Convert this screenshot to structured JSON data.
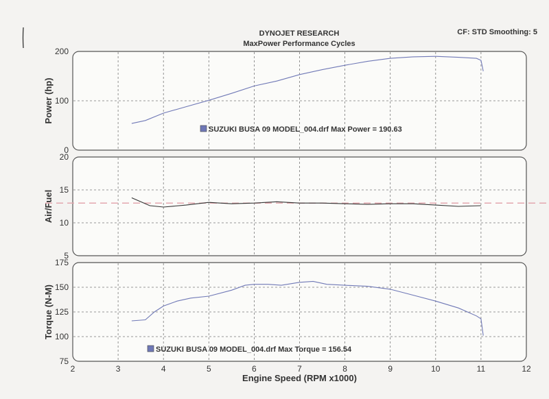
{
  "header": {
    "title": "DYNOJET RESEARCH",
    "subtitle": "MaxPower Performance Cycles",
    "settings": "CF: STD  Smoothing: 5"
  },
  "chart_data": [
    {
      "type": "line",
      "ylabel": "Power (hp)",
      "ylim": [
        0,
        200
      ],
      "yticks": [
        0,
        100,
        200
      ],
      "xlim": [
        2,
        12
      ],
      "grid": true,
      "legend": "SUZUKI BUSA 09 MODEL_004.drf Max Power = 190.63",
      "legend_color": "#6f78b6",
      "series": [
        {
          "x": [
            3.3,
            3.6,
            4.0,
            4.5,
            5.0,
            5.5,
            6.0,
            6.5,
            7.0,
            7.5,
            8.0,
            8.5,
            9.0,
            9.5,
            10.0,
            10.5,
            10.9,
            11.0,
            11.05
          ],
          "y": [
            54,
            60,
            75,
            88,
            101,
            115,
            130,
            140,
            153,
            163,
            172,
            180,
            186,
            189,
            190,
            188,
            186,
            182,
            160
          ]
        }
      ]
    },
    {
      "type": "line",
      "ylabel": "Air/Fuel",
      "ylim": [
        5,
        20
      ],
      "yticks": [
        5,
        10,
        15,
        20
      ],
      "xlim": [
        2,
        12
      ],
      "grid": true,
      "reference_line": 13.0,
      "reference_color": "#e3a7ae",
      "series": [
        {
          "x": [
            3.3,
            3.5,
            3.7,
            4.0,
            4.5,
            5.0,
            5.5,
            6.0,
            6.5,
            7.0,
            7.5,
            8.0,
            8.5,
            9.0,
            9.5,
            10.0,
            10.5,
            11.0
          ],
          "y": [
            13.8,
            13.2,
            12.6,
            12.4,
            12.7,
            13.1,
            12.9,
            13.0,
            13.2,
            13.0,
            13.0,
            12.9,
            12.8,
            12.9,
            12.9,
            12.7,
            12.5,
            12.6
          ]
        }
      ]
    },
    {
      "type": "line",
      "ylabel": "Torque (N-M)",
      "ylim": [
        75,
        175
      ],
      "yticks": [
        75,
        100,
        125,
        150,
        175
      ],
      "xlim": [
        2,
        12
      ],
      "xticks": [
        2,
        3,
        4,
        5,
        6,
        7,
        8,
        9,
        10,
        11,
        12
      ],
      "xlabel": "Engine Speed (RPM x1000)",
      "grid": true,
      "legend": "SUZUKI BUSA 09 MODEL_004.drf Max Torque = 156.54",
      "legend_color": "#6f78b6",
      "series": [
        {
          "x": [
            3.3,
            3.6,
            3.8,
            4.0,
            4.3,
            4.6,
            5.0,
            5.5,
            5.8,
            6.0,
            6.3,
            6.6,
            7.0,
            7.3,
            7.6,
            8.0,
            8.5,
            9.0,
            9.5,
            10.0,
            10.5,
            10.9,
            11.0,
            11.05
          ],
          "y": [
            116,
            117,
            125,
            131,
            136,
            139,
            141,
            147,
            152,
            153,
            153,
            152,
            155,
            156,
            153,
            152,
            151,
            148,
            142,
            136,
            129,
            121,
            118,
            101
          ]
        }
      ]
    }
  ]
}
